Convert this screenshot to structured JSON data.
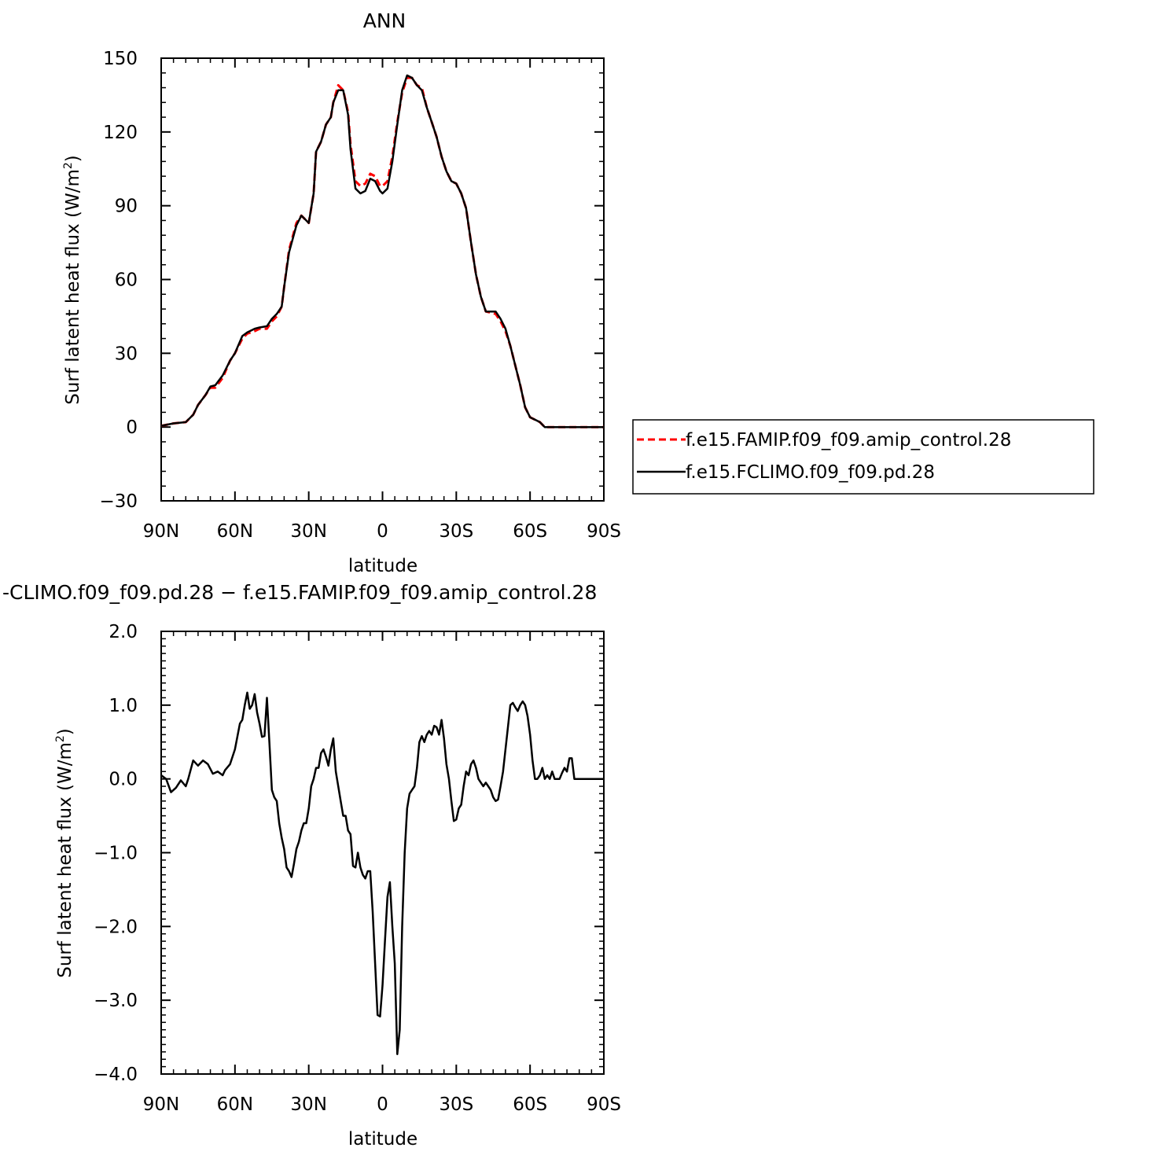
{
  "top_panel": {
    "title": "ANN",
    "ylabel_main": "Surf latent heat flux (W/m",
    "ylabel_sup": "2",
    "ylabel_close": ")",
    "xlabel": "latitude"
  },
  "bottom_panel": {
    "title": "-CLIMO.f09_f09.pd.28  −  f.e15.FAMIP.f09_f09.amip_control.28",
    "ylabel_main": "Surf latent heat flux (W/m",
    "ylabel_sup": "2",
    "ylabel_close": ")",
    "xlabel": "latitude"
  },
  "legend": {
    "items": [
      {
        "label": "f.e15.FAMIP.f09_f09.amip_control.28",
        "color": "#ff0000",
        "dash": true
      },
      {
        "label": "f.e15.FCLIMO.f09_f09.pd.28",
        "color": "#000000",
        "dash": false
      }
    ]
  },
  "chart_data": [
    {
      "type": "line",
      "title": "ANN",
      "xlabel": "latitude",
      "ylabel": "Surf latent heat flux (W/m2)",
      "xlim": [
        90,
        -90
      ],
      "ylim": [
        -30,
        150
      ],
      "x_tick_values": [
        90,
        60,
        30,
        0,
        -30,
        -60,
        -90
      ],
      "x_tick_labels": [
        "90N",
        "60N",
        "30N",
        "0",
        "30S",
        "60S",
        "90S"
      ],
      "y_tick_values": [
        -30,
        0,
        30,
        60,
        90,
        120,
        150
      ],
      "y_tick_labels": [
        "−30",
        "0",
        "30",
        "60",
        "90",
        "120",
        "150"
      ],
      "legend_position": "right",
      "series": [
        {
          "name": "f.e15.FAMIP.f09_f09.amip_control.28",
          "color": "#ff0000",
          "dash": true,
          "x": [
            90,
            85,
            80,
            77,
            75,
            72,
            70,
            68,
            65,
            62,
            60,
            57,
            55,
            52,
            50,
            47,
            45,
            43,
            41,
            40,
            38,
            35,
            33,
            32,
            30,
            28,
            27,
            25,
            23,
            21,
            20,
            18,
            16,
            14,
            13,
            11,
            9,
            7,
            5,
            3,
            1,
            0,
            -2,
            -4,
            -6,
            -8,
            -10,
            -12,
            -14,
            -16,
            -18,
            -20,
            -22,
            -24,
            -26,
            -28,
            -30,
            -32,
            -34,
            -36,
            -38,
            -40,
            -42,
            -44,
            -46,
            -48,
            -50,
            -52,
            -54,
            -56,
            -58,
            -60,
            -62,
            -64,
            -66,
            -68,
            -70,
            -72,
            -74,
            -76,
            -78,
            -80,
            -82,
            -85,
            -90
          ],
          "y": [
            0.5,
            1.5,
            2,
            5,
            9,
            13,
            16,
            16,
            20,
            27,
            30,
            36,
            38,
            39,
            40,
            40,
            43,
            45,
            49,
            57,
            72,
            83,
            86,
            85,
            83,
            95,
            112,
            116,
            123,
            126,
            132,
            139,
            137,
            128,
            115,
            100,
            98,
            99,
            103,
            102,
            98,
            98,
            100,
            110,
            124,
            136,
            142,
            142,
            139,
            138,
            130,
            124,
            118,
            110,
            104,
            100,
            99,
            95,
            89,
            75,
            62,
            53,
            47,
            46.5,
            46,
            43,
            39,
            33,
            25,
            17,
            8,
            4,
            3,
            2,
            0,
            0,
            0,
            0,
            0,
            0,
            0,
            0,
            0,
            0,
            0
          ]
        },
        {
          "name": "f.e15.FCLIMO.f09_f09.pd.28",
          "color": "#000000",
          "dash": false,
          "x": [
            90,
            85,
            80,
            77,
            75,
            72,
            70,
            68,
            65,
            62,
            60,
            57,
            55,
            52,
            50,
            47,
            45,
            43,
            41,
            40,
            38,
            35,
            33,
            32,
            30,
            28,
            27,
            25,
            23,
            21,
            20,
            18,
            16,
            14,
            13,
            11,
            9,
            7,
            5,
            3,
            1,
            0,
            -2,
            -4,
            -6,
            -8,
            -10,
            -12,
            -14,
            -16,
            -18,
            -20,
            -22,
            -24,
            -26,
            -28,
            -30,
            -32,
            -34,
            -36,
            -38,
            -40,
            -42,
            -44,
            -46,
            -48,
            -50,
            -52,
            -54,
            -56,
            -58,
            -60,
            -62,
            -64,
            -66,
            -68,
            -70,
            -72,
            -74,
            -76,
            -78,
            -80,
            -82,
            -85,
            -90
          ],
          "y": [
            0.5,
            1.5,
            2,
            5,
            9,
            13,
            16.5,
            17,
            21,
            27,
            30,
            37,
            38.5,
            40,
            40.5,
            41,
            44,
            46,
            49,
            57,
            71,
            82,
            86,
            85,
            83,
            95,
            112,
            116,
            123,
            126,
            132,
            137,
            137,
            127,
            113,
            97,
            95,
            96,
            101,
            100,
            96,
            95,
            97,
            108,
            123,
            137,
            143,
            142,
            139,
            137,
            130,
            124,
            118,
            110,
            104,
            100,
            99,
            95,
            89,
            75,
            62,
            53,
            47,
            47,
            47,
            44,
            40,
            33,
            25,
            17,
            8,
            4,
            3,
            2,
            0,
            0,
            0,
            0,
            0,
            0,
            0,
            0,
            0,
            0,
            0
          ]
        }
      ]
    },
    {
      "type": "line",
      "title": "-CLIMO.f09_f09.pd.28  −  f.e15.FAMIP.f09_f09.amip_control.28",
      "xlabel": "latitude",
      "ylabel": "Surf latent heat flux (W/m2)",
      "xlim": [
        90,
        -90
      ],
      "ylim": [
        -4.0,
        2.0
      ],
      "x_tick_values": [
        90,
        60,
        30,
        0,
        -30,
        -60,
        -90
      ],
      "x_tick_labels": [
        "90N",
        "60N",
        "30N",
        "0",
        "30S",
        "60S",
        "90S"
      ],
      "y_tick_values": [
        -4,
        -3,
        -2,
        -1,
        0,
        1,
        2
      ],
      "y_tick_labels": [
        "−4.0",
        "−3.0",
        "−2.0",
        "−1.0",
        "0.0",
        "1.0",
        "2.0"
      ],
      "series": [
        {
          "color": "#000000",
          "dash": false,
          "x": [
            90,
            88,
            86,
            84,
            82,
            80,
            79,
            77,
            75,
            73,
            71,
            69,
            67,
            65,
            64,
            62,
            60,
            58,
            57,
            56,
            55,
            54,
            53,
            52,
            51,
            50,
            49,
            48,
            47,
            46,
            45,
            44,
            43,
            42,
            41,
            40,
            39,
            38,
            37,
            36,
            35,
            34,
            33,
            32,
            31,
            30,
            29,
            28,
            27,
            26,
            25,
            24,
            23,
            22,
            21,
            20,
            19,
            18,
            17,
            16,
            15,
            14,
            13,
            12,
            11,
            10,
            9,
            8,
            7,
            6,
            5,
            4,
            3,
            2,
            1,
            0,
            -1,
            -2,
            -3,
            -4,
            -5,
            -6,
            -7,
            -8,
            -9,
            -10,
            -11,
            -12,
            -13,
            -14,
            -15,
            -16,
            -17,
            -18,
            -19,
            -20,
            -21,
            -22,
            -23,
            -24,
            -25,
            -26,
            -27,
            -28,
            -29,
            -30,
            -31,
            -32,
            -33,
            -34,
            -35,
            -36,
            -37,
            -38,
            -39,
            -40,
            -41,
            -42,
            -43,
            -44,
            -45,
            -46,
            -47,
            -48,
            -49,
            -50,
            -51,
            -52,
            -53,
            -54,
            -55,
            -56,
            -57,
            -58,
            -59,
            -60,
            -61,
            -62,
            -63,
            -64,
            -65,
            -66,
            -67,
            -68,
            -69,
            -70,
            -71,
            -72,
            -73,
            -74,
            -75,
            -76,
            -77,
            -78,
            -79,
            -80,
            -81,
            -82,
            -83,
            -84,
            -85,
            -86,
            -87,
            -88,
            -89,
            -90
          ],
          "y": [
            0.05,
            0.0,
            -0.18,
            -0.12,
            -0.02,
            -0.1,
            0.0,
            0.25,
            0.18,
            0.25,
            0.2,
            0.07,
            0.1,
            0.05,
            0.12,
            0.2,
            0.4,
            0.75,
            0.8,
            1.0,
            1.17,
            0.95,
            1.0,
            1.15,
            0.9,
            0.75,
            0.57,
            0.58,
            1.1,
            0.5,
            -0.15,
            -0.25,
            -0.3,
            -0.6,
            -0.8,
            -0.95,
            -1.2,
            -1.25,
            -1.33,
            -1.15,
            -0.95,
            -0.85,
            -0.7,
            -0.6,
            -0.6,
            -0.4,
            -0.1,
            0.0,
            0.15,
            0.15,
            0.35,
            0.4,
            0.3,
            0.18,
            0.4,
            0.55,
            0.1,
            -0.1,
            -0.3,
            -0.5,
            -0.5,
            -0.7,
            -0.75,
            -1.18,
            -1.2,
            -1.0,
            -1.2,
            -1.3,
            -1.35,
            -1.25,
            -1.25,
            -1.8,
            -2.5,
            -3.2,
            -3.22,
            -2.8,
            -2.2,
            -1.6,
            -1.4,
            -2.0,
            -2.5,
            -3.73,
            -3.4,
            -2.0,
            -1.0,
            -0.4,
            -0.2,
            -0.15,
            -0.1,
            0.15,
            0.5,
            0.58,
            0.5,
            0.6,
            0.65,
            0.6,
            0.72,
            0.7,
            0.6,
            0.8,
            0.55,
            0.2,
            0.0,
            -0.3,
            -0.57,
            -0.55,
            -0.4,
            -0.35,
            -0.1,
            0.1,
            0.05,
            0.2,
            0.25,
            0.15,
            0.0,
            -0.05,
            -0.1,
            -0.05,
            -0.1,
            -0.15,
            -0.25,
            -0.3,
            -0.28,
            -0.1,
            0.1,
            0.4,
            0.7,
            1.0,
            1.03,
            0.97,
            0.92,
            1.0,
            1.05,
            1.0,
            0.85,
            0.6,
            0.25,
            0.0,
            0.0,
            0.05,
            0.15,
            0.0,
            0.05,
            0.0,
            0.1,
            0.0,
            0.0,
            0.0,
            0.08,
            0.15,
            0.1,
            0.28,
            0.28,
            0.0,
            0.0,
            0.0,
            0.0,
            0.0,
            0.0,
            0.0,
            0.0,
            0.0,
            0.0,
            0.0,
            0.0,
            0.0
          ]
        }
      ]
    }
  ]
}
